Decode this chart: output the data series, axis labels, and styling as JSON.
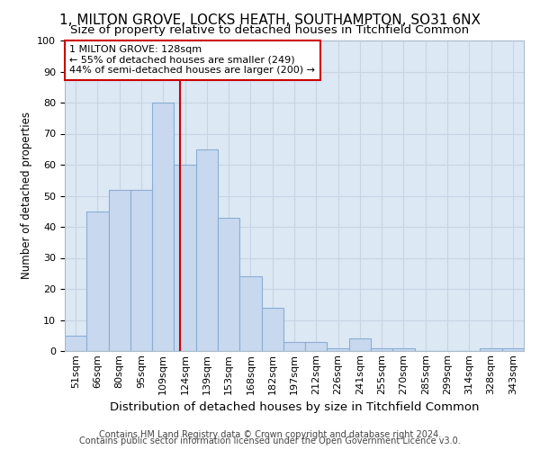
{
  "title1": "1, MILTON GROVE, LOCKS HEATH, SOUTHAMPTON, SO31 6NX",
  "title2": "Size of property relative to detached houses in Titchfield Common",
  "xlabel": "Distribution of detached houses by size in Titchfield Common",
  "ylabel": "Number of detached properties",
  "footnote1": "Contains HM Land Registry data © Crown copyright and database right 2024.",
  "footnote2": "Contains public sector information licensed under the Open Government Licence v3.0.",
  "categories": [
    "51sqm",
    "66sqm",
    "80sqm",
    "95sqm",
    "109sqm",
    "124sqm",
    "139sqm",
    "153sqm",
    "168sqm",
    "182sqm",
    "197sqm",
    "212sqm",
    "226sqm",
    "241sqm",
    "255sqm",
    "270sqm",
    "285sqm",
    "299sqm",
    "314sqm",
    "328sqm",
    "343sqm"
  ],
  "values": [
    5,
    45,
    52,
    52,
    80,
    60,
    65,
    43,
    24,
    14,
    3,
    3,
    1,
    4,
    1,
    1,
    0,
    0,
    0,
    1,
    1
  ],
  "bar_color": "#c8d8ee",
  "bar_edge_color": "#8aaed4",
  "grid_color": "#c8d4e4",
  "plot_bg_color": "#dce8f4",
  "fig_bg_color": "#ffffff",
  "annotation_box_color": "white",
  "annotation_box_edge": "#cc0000",
  "property_line_color": "#cc0000",
  "ylim": [
    0,
    100
  ],
  "yticks": [
    0,
    10,
    20,
    30,
    40,
    50,
    60,
    70,
    80,
    90,
    100
  ],
  "title1_fontsize": 11,
  "title2_fontsize": 9.5,
  "ylabel_fontsize": 8.5,
  "xlabel_fontsize": 9.5,
  "tick_fontsize": 8,
  "annot_fontsize": 8,
  "footnote_fontsize": 7
}
